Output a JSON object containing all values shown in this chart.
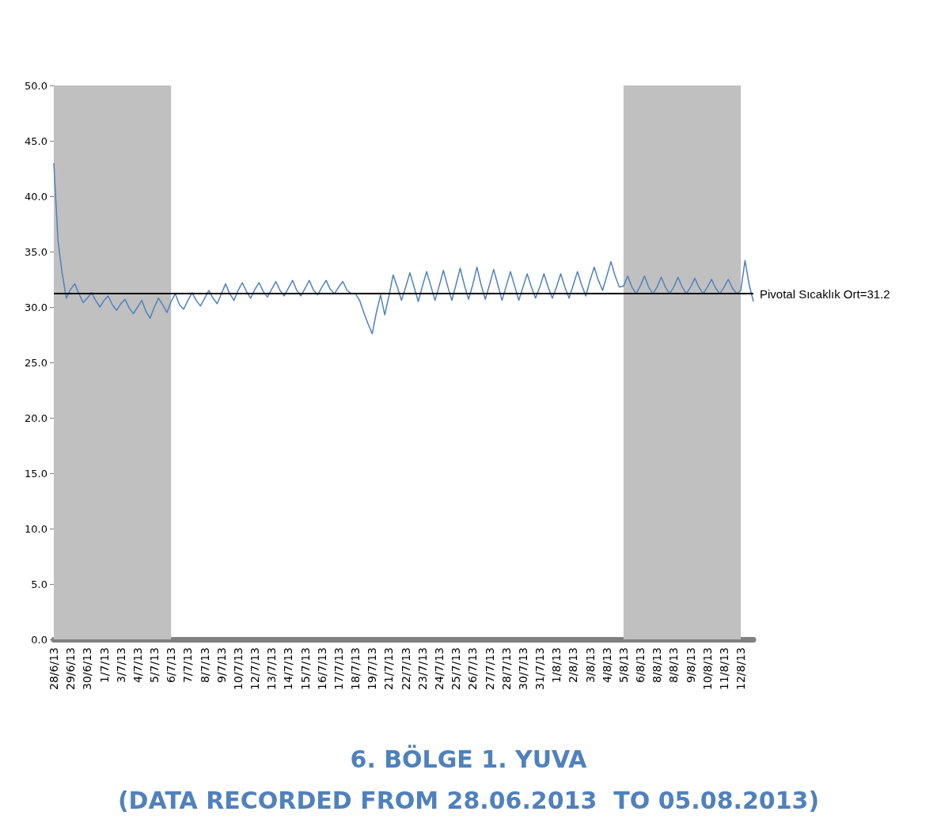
{
  "chart_data": {
    "type": "line",
    "title": "6. BÖLGE 1. YUVA",
    "subtitle": "(DATA RECORDED FROM 28.06.2013  TO 05.08.2013)",
    "categories": [
      "28/6/13",
      null,
      null,
      null,
      "29/6/13",
      null,
      null,
      null,
      "30/6/13",
      null,
      null,
      null,
      "1/7/13",
      null,
      null,
      null,
      "3/7/13",
      null,
      null,
      null,
      "4/7/13",
      null,
      null,
      null,
      "5/7/13",
      null,
      null,
      null,
      "6/7/13",
      null,
      null,
      null,
      "7/7/13",
      null,
      null,
      null,
      "8/7/13",
      null,
      null,
      null,
      "9/7/13",
      null,
      null,
      null,
      "10/7/13",
      null,
      null,
      null,
      "12/7/13",
      null,
      null,
      null,
      "13/7/13",
      null,
      null,
      null,
      "14/7/13",
      null,
      null,
      null,
      "15/7/13",
      null,
      null,
      null,
      "16/7/13",
      null,
      null,
      null,
      "17/7/13",
      null,
      null,
      null,
      "18/7/13",
      null,
      null,
      null,
      "19/7/13",
      null,
      null,
      null,
      "21/7/13",
      null,
      null,
      null,
      "22/7/13",
      null,
      null,
      null,
      "23/7/13",
      null,
      null,
      null,
      "24/7/13",
      null,
      null,
      null,
      "25/7/13",
      null,
      null,
      null,
      "26/7/13",
      null,
      null,
      null,
      "27/7/13",
      null,
      null,
      null,
      "28/7/13",
      null,
      null,
      null,
      "30/7/13",
      null,
      null,
      null,
      "31/7/13",
      null,
      null,
      null,
      "1/8/13",
      null,
      null,
      null,
      "2/8/13",
      null,
      null,
      null,
      "3/8/13",
      null,
      null,
      null,
      "4/8/13",
      null,
      null,
      null,
      "5/8/13",
      null,
      null,
      null,
      "6/8/13",
      null,
      null,
      null,
      "8/8/13",
      null,
      null,
      null,
      "8/8/13",
      null,
      null,
      null,
      "9/8/13",
      null,
      null,
      null,
      "10/8/13",
      null,
      null,
      null,
      "11/8/13",
      null,
      null,
      null,
      "12/8/13",
      null,
      null,
      null
    ],
    "values": [
      43,
      36,
      33,
      30.8,
      31.6,
      32.1,
      31.2,
      30.4,
      30.8,
      31.3,
      30.6,
      30,
      30.6,
      31,
      30.2,
      29.7,
      30.3,
      30.7,
      29.9,
      29.4,
      30,
      30.6,
      29.6,
      29,
      30,
      30.8,
      30.2,
      29.5,
      30.5,
      31.2,
      30.2,
      29.8,
      30.6,
      31.3,
      30.6,
      30.1,
      30.8,
      31.5,
      30.8,
      30.3,
      31.2,
      32.1,
      31.2,
      30.6,
      31.5,
      32.2,
      31.4,
      30.8,
      31.6,
      32.2,
      31.4,
      30.9,
      31.6,
      32.3,
      31.5,
      31,
      31.7,
      32.4,
      31.5,
      31,
      31.7,
      32.4,
      31.5,
      31.1,
      31.8,
      32.4,
      31.6,
      31.2,
      31.8,
      32.3,
      31.5,
      31.2,
      31.2,
      30.6,
      29.5,
      28.5,
      27.6,
      29.5,
      31.1,
      29.3,
      31,
      32.9,
      31.8,
      30.6,
      31.8,
      33.1,
      31.8,
      30.5,
      31.9,
      33.2,
      31.9,
      30.6,
      31.9,
      33.3,
      31.9,
      30.6,
      32,
      33.5,
      32,
      30.7,
      32,
      33.6,
      32,
      30.7,
      32,
      33.4,
      32,
      30.6,
      31.9,
      33.2,
      31.9,
      30.6,
      31.8,
      33,
      31.8,
      30.8,
      31.8,
      33,
      31.8,
      30.8,
      31.8,
      33,
      31.8,
      30.8,
      32,
      33.2,
      32,
      31,
      32.4,
      33.6,
      32.4,
      31.5,
      32.8,
      34.1,
      32.8,
      31.8,
      31.9,
      32.8,
      31.8,
      31.2,
      31.9,
      32.8,
      31.8,
      31.2,
      31.8,
      32.7,
      31.8,
      31.2,
      31.8,
      32.7,
      31.8,
      31.2,
      31.8,
      32.6,
      31.8,
      31.2,
      31.8,
      32.5,
      31.7,
      31.2,
      31.8,
      32.5,
      31.7,
      31.2,
      31.5,
      34.2,
      32,
      30.5
    ],
    "color": "#4f81bd",
    "marker": "none",
    "ylim": [
      0,
      50
    ],
    "yticks": [
      {
        "value": 0,
        "label": "0.0"
      },
      {
        "value": 5,
        "label": "5.0"
      },
      {
        "value": 10,
        "label": "10.0"
      },
      {
        "value": 15,
        "label": "15.0"
      },
      {
        "value": 20,
        "label": "20.0"
      },
      {
        "value": 25,
        "label": "25.0"
      },
      {
        "value": 30,
        "label": "30.0"
      },
      {
        "value": 35,
        "label": "35.0"
      },
      {
        "value": 40,
        "label": "40.0"
      },
      {
        "value": 45,
        "label": "45.0"
      },
      {
        "value": 50,
        "label": "50.0"
      }
    ],
    "ref_lines": [
      {
        "axis": "y",
        "value": 31.2,
        "label": "Pivotal Sıcaklık Ort=31.2",
        "color": "#000000"
      }
    ],
    "bands": [
      {
        "axis": "x",
        "from": "28/6/13",
        "to": "6/7/13",
        "color": "#c0c0c0"
      },
      {
        "axis": "x",
        "from": "5/8/13",
        "to": "12/8/13",
        "color": "#c0c0c0"
      }
    ]
  }
}
